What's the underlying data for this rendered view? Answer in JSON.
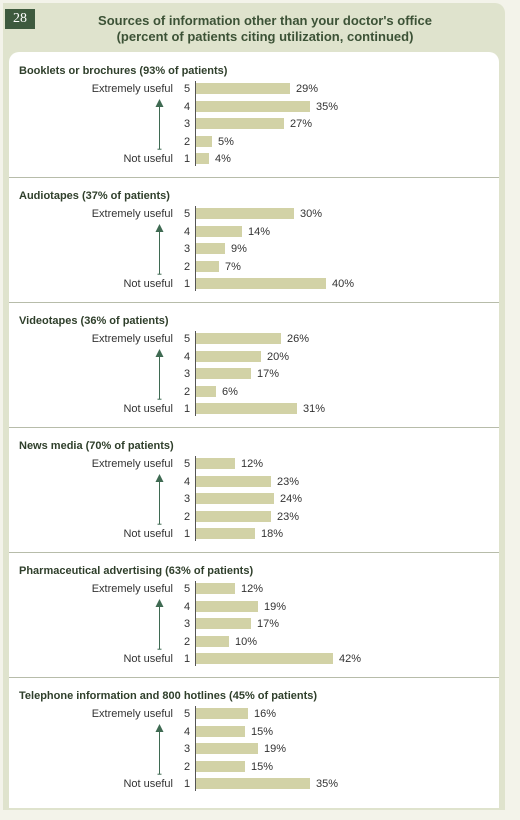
{
  "page_number": "28",
  "header": {
    "title_line1": "Sources of information other than your doctor's office",
    "title_line2": "(percent of patients citing utilization, continued)"
  },
  "colors": {
    "bar": "#d2d2a6",
    "accent": "#3e5a3e",
    "arrow": "#3f6a52"
  },
  "chart_data": [
    {
      "type": "bar",
      "title": "Booklets or brochures (93% of patients)",
      "categories": [
        "5",
        "4",
        "3",
        "2",
        "1"
      ],
      "anchors": {
        "top": "Extremely useful",
        "bottom": "Not useful"
      },
      "values": [
        29,
        35,
        27,
        5,
        4
      ],
      "value_labels": [
        "29%",
        "35%",
        "27%",
        "5%",
        "4%"
      ]
    },
    {
      "type": "bar",
      "title": "Audiotapes (37% of patients)",
      "categories": [
        "5",
        "4",
        "3",
        "2",
        "1"
      ],
      "anchors": {
        "top": "Extremely useful",
        "bottom": "Not useful"
      },
      "values": [
        30,
        14,
        9,
        7,
        40
      ],
      "value_labels": [
        "30%",
        "14%",
        "9%",
        "7%",
        "40%"
      ]
    },
    {
      "type": "bar",
      "title": "Videotapes (36% of patients)",
      "categories": [
        "5",
        "4",
        "3",
        "2",
        "1"
      ],
      "anchors": {
        "top": "Extremely useful",
        "bottom": "Not useful"
      },
      "values": [
        26,
        20,
        17,
        6,
        31
      ],
      "value_labels": [
        "26%",
        "20%",
        "17%",
        "6%",
        "31%"
      ]
    },
    {
      "type": "bar",
      "title": "News media (70% of patients)",
      "categories": [
        "5",
        "4",
        "3",
        "2",
        "1"
      ],
      "anchors": {
        "top": "Extremely useful",
        "bottom": "Not useful"
      },
      "values": [
        12,
        23,
        24,
        23,
        18
      ],
      "value_labels": [
        "12%",
        "23%",
        "24%",
        "23%",
        "18%"
      ]
    },
    {
      "type": "bar",
      "title": "Pharmaceutical advertising (63% of patients)",
      "categories": [
        "5",
        "4",
        "3",
        "2",
        "1"
      ],
      "anchors": {
        "top": "Extremely useful",
        "bottom": "Not useful"
      },
      "values": [
        12,
        19,
        17,
        10,
        42
      ],
      "value_labels": [
        "12%",
        "19%",
        "17%",
        "10%",
        "42%"
      ]
    },
    {
      "type": "bar",
      "title": "Telephone information and 800 hotlines (45% of patients)",
      "categories": [
        "5",
        "4",
        "3",
        "2",
        "1"
      ],
      "anchors": {
        "top": "Extremely useful",
        "bottom": "Not useful"
      },
      "values": [
        16,
        15,
        19,
        15,
        35
      ],
      "value_labels": [
        "16%",
        "15%",
        "19%",
        "15%",
        "35%"
      ]
    }
  ]
}
